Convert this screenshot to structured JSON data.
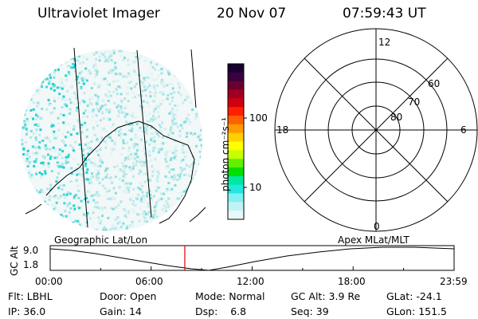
{
  "header": {
    "instrument": "Ultraviolet Imager",
    "date": "20 Nov 07",
    "time": "07:59:43 UT"
  },
  "colorbar": {
    "unit_label": "photon cm⁻²s⁻¹",
    "ticks": [
      "100",
      "10"
    ],
    "colors": [
      "#1a0030",
      "#3a0040",
      "#6a0030",
      "#a00020",
      "#d00010",
      "#ff2000",
      "#ff6000",
      "#ff9a00",
      "#ffd000",
      "#ffff00",
      "#c8ff00",
      "#60f000",
      "#00e000",
      "#00e8a0",
      "#20e8e0",
      "#80f0f0",
      "#c0f4f4",
      "#e8f8f8"
    ]
  },
  "polar_plot": {
    "mlt_labels": {
      "top": "12",
      "left": "18",
      "right": "6",
      "bottom": "0"
    },
    "lat_labels": [
      "60",
      "70",
      "80"
    ]
  },
  "timeline": {
    "left_label": "Geographic Lat/Lon",
    "right_label": "Apex MLat/MLT",
    "axis_title": "GC Alt",
    "y_ticks": [
      "9.0",
      "1.8"
    ],
    "x_ticks": [
      "00:00",
      "06:00",
      "12:00",
      "18:00",
      "23:59"
    ],
    "current_time_hours": 7.998
  },
  "status": {
    "flt": {
      "label": "Flt:",
      "value": "LBHL"
    },
    "ip": {
      "label": "IP:",
      "value": "36.0"
    },
    "door": {
      "label": "Door:",
      "value": "Open"
    },
    "gain": {
      "label": "Gain:",
      "value": "14"
    },
    "mode": {
      "label": "Mode:",
      "value": "Normal"
    },
    "dsp": {
      "label": "Dsp:",
      "value": "6.8"
    },
    "gc_alt": {
      "label": "GC Alt:",
      "value": "3.9 Re"
    },
    "seq": {
      "label": "Seq:",
      "value": "39"
    },
    "glat": {
      "label": "GLat:",
      "value": "-24.1"
    },
    "glon": {
      "label": "GLon:",
      "value": "151.5"
    }
  },
  "accent_colors": {
    "current_time_marker": "#e00000",
    "emission_cyan": "#20d8d8"
  }
}
